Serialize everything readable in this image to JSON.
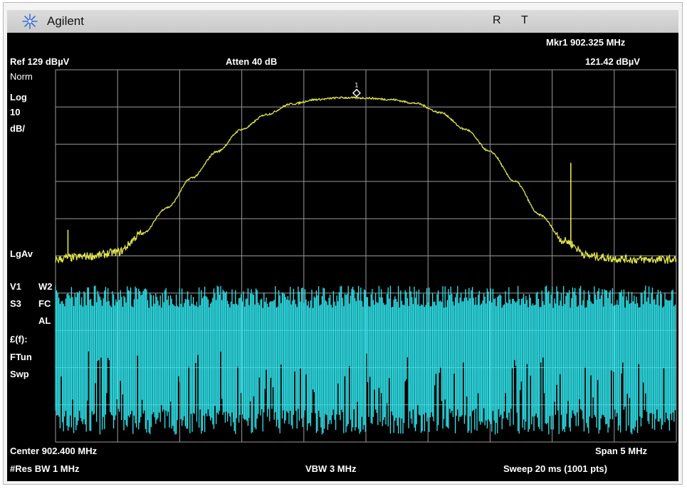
{
  "brand": "Agilent",
  "indicators": [
    "R",
    "T"
  ],
  "header": {
    "marker": "Mkr1  902.325 MHz",
    "ref": "Ref 129 dBµV",
    "atten": "Atten 40 dB",
    "marker_amplitude": "121.42 dBµV"
  },
  "sidebar": {
    "scale_type": "Norm",
    "log_label": "Log",
    "scale_value": "10",
    "scale_unit": "dB/",
    "avg_type": "LgAv",
    "v1": "V1",
    "w2": "W2",
    "s3": "S3",
    "fc": "FC",
    "al": "AL",
    "fs_label": "£(f):",
    "ftun": "FTun",
    "swp": "Swp"
  },
  "footer": {
    "center": "Center 902.400 MHz",
    "span": "Span 5 MHz",
    "rbw": "#Res BW 1 MHz",
    "vbw": "VBW 3 MHz",
    "sweep": "Sweep 20 ms (1001 pts)"
  },
  "colors": {
    "trace": "#e3e64a",
    "noise": "#30e6ee",
    "grid": "#9a9a9a",
    "background": "#000000"
  },
  "chart_data": {
    "type": "line",
    "x_unit": "MHz",
    "y_unit": "dBµV",
    "xlim": [
      899.9,
      904.9
    ],
    "ylim": [
      29,
      129
    ],
    "grid": true,
    "marker": {
      "label": "1",
      "x": 902.325,
      "y": 121.42
    },
    "series": [
      {
        "x": [
          899.9,
          900.0,
          900.2,
          900.4,
          900.6,
          900.8,
          901.0,
          901.2,
          901.4,
          901.6,
          901.8,
          902.0,
          902.2,
          902.4,
          902.6,
          902.8,
          903.0,
          903.2,
          903.4,
          903.6,
          903.8,
          904.0,
          904.2,
          904.4,
          904.6,
          904.9
        ],
        "y": [
          78,
          78.5,
          79,
          80,
          85,
          92,
          100,
          107,
          113,
          117,
          119.8,
          121,
          121.5,
          121.4,
          121,
          120,
          117.5,
          113,
          107,
          99,
          90,
          83,
          79,
          78.3,
          78,
          78
        ]
      }
    ],
    "spurs": [
      {
        "x": 900.0,
        "y": 86
      },
      {
        "x": 904.05,
        "y": 104
      }
    ],
    "noise_floor": {
      "low": 31,
      "high": 71
    }
  }
}
